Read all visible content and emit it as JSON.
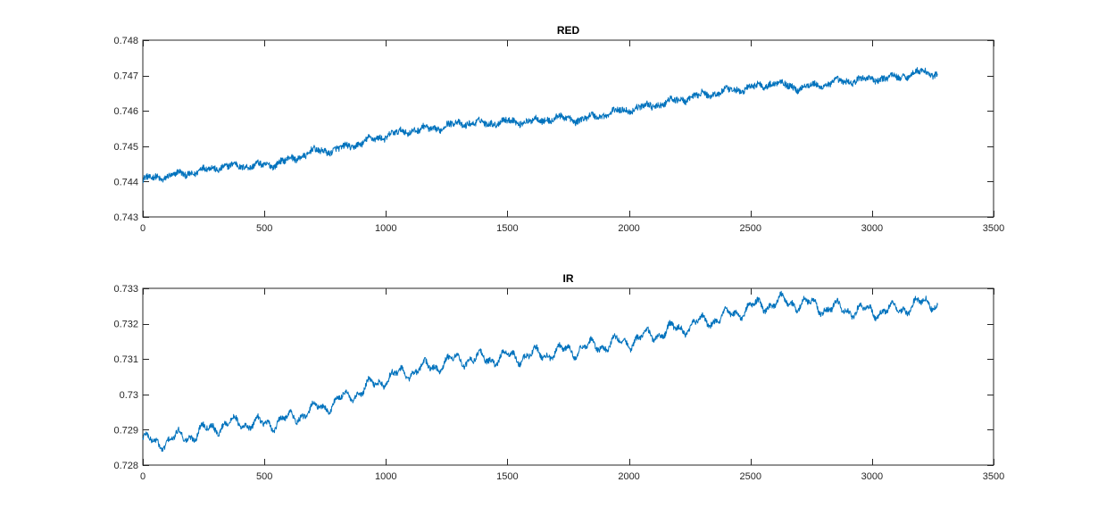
{
  "chart_data": [
    {
      "type": "line",
      "title": "RED",
      "xlabel": "",
      "ylabel": "",
      "xlim": [
        0,
        3500
      ],
      "ylim": [
        0.743,
        0.748
      ],
      "xticks": [
        0,
        500,
        1000,
        1500,
        2000,
        2500,
        3000,
        3500
      ],
      "xtick_labels": [
        "0",
        "500",
        "1000",
        "1500",
        "2000",
        "2500",
        "3000",
        "3500"
      ],
      "yticks": [
        0.743,
        0.744,
        0.745,
        0.746,
        0.747,
        0.748
      ],
      "ytick_labels": [
        "0.743",
        "0.744",
        "0.745",
        "0.746",
        "0.747",
        "0.748"
      ],
      "grid": false,
      "color": "#0072BD",
      "x": [
        0,
        100,
        200,
        300,
        400,
        500,
        600,
        700,
        800,
        900,
        1000,
        1100,
        1200,
        1300,
        1400,
        1500,
        1600,
        1700,
        1800,
        1900,
        2000,
        2100,
        2200,
        2300,
        2400,
        2500,
        2600,
        2700,
        2800,
        2900,
        3000,
        3100,
        3200,
        3270
      ],
      "y": [
        0.74405,
        0.74415,
        0.74425,
        0.7444,
        0.74445,
        0.74445,
        0.7446,
        0.74485,
        0.7449,
        0.7451,
        0.7453,
        0.74545,
        0.7455,
        0.74565,
        0.74565,
        0.7457,
        0.7457,
        0.7458,
        0.74575,
        0.7459,
        0.74605,
        0.74615,
        0.7463,
        0.74645,
        0.74655,
        0.74665,
        0.7468,
        0.74665,
        0.74675,
        0.74685,
        0.7469,
        0.74695,
        0.7471,
        0.74705
      ]
    },
    {
      "type": "line",
      "title": "IR",
      "xlabel": "",
      "ylabel": "",
      "xlim": [
        0,
        3500
      ],
      "ylim": [
        0.728,
        0.733
      ],
      "xticks": [
        0,
        500,
        1000,
        1500,
        2000,
        2500,
        3000,
        3500
      ],
      "xtick_labels": [
        "0",
        "500",
        "1000",
        "1500",
        "2000",
        "2500",
        "3000",
        "3500"
      ],
      "yticks": [
        0.728,
        0.729,
        0.73,
        0.731,
        0.732,
        0.733
      ],
      "ytick_labels": [
        "0.728",
        "0.729",
        "0.73",
        "0.731",
        "0.732",
        "0.733"
      ],
      "grid": false,
      "color": "#0072BD",
      "x": [
        0,
        50,
        100,
        200,
        300,
        400,
        500,
        600,
        700,
        800,
        900,
        1000,
        1100,
        1200,
        1300,
        1400,
        1500,
        1600,
        1700,
        1800,
        1900,
        2000,
        2100,
        2200,
        2300,
        2400,
        2500,
        2600,
        2700,
        2800,
        2900,
        3000,
        3100,
        3200,
        3240,
        3270
      ],
      "y": [
        0.72875,
        0.7286,
        0.7287,
        0.72885,
        0.7291,
        0.7292,
        0.72915,
        0.7293,
        0.72955,
        0.7298,
        0.7301,
        0.73045,
        0.73065,
        0.7308,
        0.731,
        0.731,
        0.73105,
        0.7311,
        0.7312,
        0.7313,
        0.7314,
        0.7315,
        0.7317,
        0.73185,
        0.73205,
        0.7322,
        0.73245,
        0.7326,
        0.7326,
        0.73245,
        0.7324,
        0.73235,
        0.7324,
        0.73255,
        0.73265,
        0.7325
      ]
    }
  ]
}
